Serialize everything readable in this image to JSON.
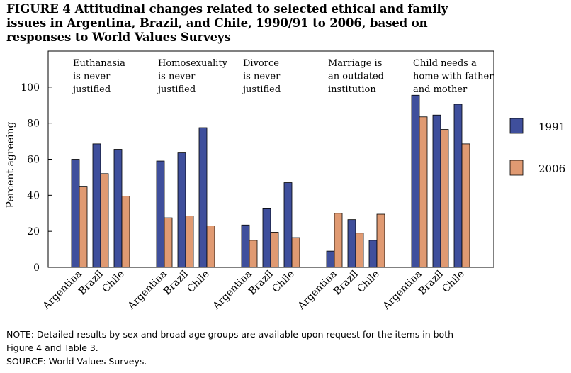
{
  "figure": {
    "label": "FIGURE 4",
    "title_lines": [
      "Attitudinal changes related to selected ethical and family",
      "issues in Argentina, Brazil, and Chile, 1990/91 to 2006, based on",
      "responses to World Values Surveys"
    ]
  },
  "notes": {
    "note_line1": "NOTE: Detailed results by sex and broad age groups are available upon request for the items in both",
    "note_line2": "Figure 4 and Table 3.",
    "source": "SOURCE: World Values Surveys."
  },
  "colors": {
    "1991": "#3f4f9c",
    "2006": "#e09a72"
  },
  "chart_data": {
    "type": "bar",
    "ylabel": "Percent agreeing",
    "xlabel": "",
    "ylim": [
      0,
      120
    ],
    "yticks": [
      0,
      20,
      40,
      60,
      80,
      100
    ],
    "grid": false,
    "legend_position": "right",
    "series_names": [
      "1991",
      "2006"
    ],
    "groups": [
      {
        "label_lines": [
          "Euthanasia",
          "is never",
          "justified"
        ],
        "countries": [
          "Argentina",
          "Brazil",
          "Chile"
        ],
        "values_1991": [
          60,
          68.5,
          65.5
        ],
        "values_2006": [
          45,
          52,
          39.5
        ]
      },
      {
        "label_lines": [
          "Homosexuality",
          "is never",
          "justified"
        ],
        "countries": [
          "Argentina",
          "Brazil",
          "Chile"
        ],
        "values_1991": [
          59,
          63.5,
          77.5
        ],
        "values_2006": [
          27.5,
          28.5,
          23
        ]
      },
      {
        "label_lines": [
          "Divorce",
          "is never",
          "justified"
        ],
        "countries": [
          "Argentina",
          "Brazil",
          "Chile"
        ],
        "values_1991": [
          23.5,
          32.5,
          47
        ],
        "values_2006": [
          15,
          19.5,
          16.5
        ]
      },
      {
        "label_lines": [
          "Marriage is",
          "an outdated",
          "institution"
        ],
        "countries": [
          "Argentina",
          "Brazil",
          "Chile"
        ],
        "values_1991": [
          9,
          26.5,
          15
        ],
        "values_2006": [
          30,
          19,
          29.5
        ]
      },
      {
        "label_lines": [
          "Child needs a",
          "home with father",
          "and mother"
        ],
        "countries": [
          "Argentina",
          "Brazil",
          "Chile"
        ],
        "values_1991": [
          95.5,
          84.5,
          90.5
        ],
        "values_2006": [
          83.5,
          76.5,
          68.5
        ]
      }
    ]
  }
}
